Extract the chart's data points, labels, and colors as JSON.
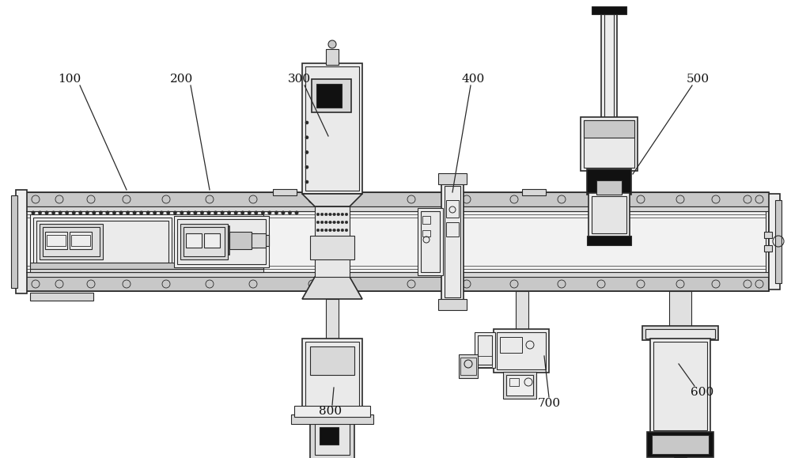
{
  "bg_color": "#ffffff",
  "line_color": "#2a2a2a",
  "dark_fill": "#111111",
  "mid_fill": "#666666",
  "light_fill": "#d8d8d8",
  "lighter_fill": "#eeeeee",
  "med_fill": "#c8c8c8",
  "figsize": [
    10.0,
    5.79
  ],
  "dpi": 100,
  "label_fontsize": 11
}
